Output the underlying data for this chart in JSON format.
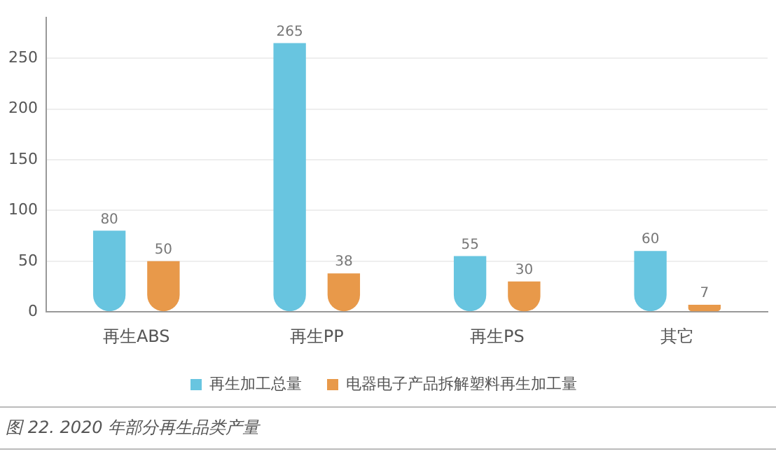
{
  "chart_data": {
    "type": "bar",
    "categories": [
      "再生ABS",
      "再生PP",
      "再生PS",
      "其它"
    ],
    "series": [
      {
        "name": "再生加工总量",
        "color": "#68c5e0",
        "values": [
          80,
          265,
          55,
          60
        ]
      },
      {
        "name": "电器电子产品拆解塑料再生加工量",
        "color": "#e8994a",
        "values": [
          50,
          38,
          30,
          7
        ]
      }
    ],
    "ylim": [
      0,
      290
    ],
    "yticks": [
      0,
      50,
      100,
      150,
      200,
      250
    ],
    "grid": "y",
    "legend": "bottom",
    "data_labels": true,
    "annotations": [
      "图 22. 2020 年部分再生品类产量"
    ]
  }
}
